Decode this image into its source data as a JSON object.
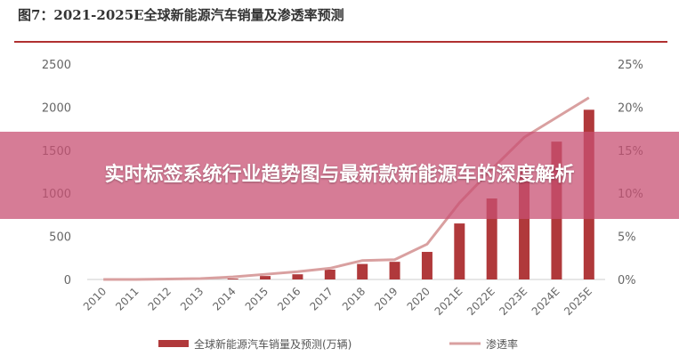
{
  "title": "图7：2021-2025E全球新能源汽车销量及渗透率预测",
  "banner": "实时标签系统行业趋势图与最新款新能源车的深度解析",
  "chart_data": {
    "type": "bar+line",
    "categories": [
      "2010",
      "2011",
      "2012",
      "2013",
      "2014",
      "2015",
      "2016",
      "2017",
      "2018",
      "2019",
      "2020",
      "2021E",
      "2022E",
      "2023E",
      "2024E",
      "2025E"
    ],
    "series": [
      {
        "name": "全球新能源汽车销量及预测(万辆)",
        "type": "bar",
        "axis": "left",
        "color": "#b0393b",
        "values": [
          0,
          1,
          2,
          5,
          10,
          40,
          60,
          114,
          180,
          205,
          320,
          650,
          940,
          1300,
          1600,
          1970
        ]
      },
      {
        "name": "渗透率",
        "type": "line",
        "axis": "right",
        "color": "#d9a0a0",
        "values": [
          0,
          0,
          0.05,
          0.1,
          0.3,
          0.6,
          0.9,
          1.3,
          2.2,
          2.3,
          4.1,
          8.9,
          12.8,
          16.5,
          18.8,
          21.1
        ]
      }
    ],
    "left_axis": {
      "ticks": [
        "0",
        "500",
        "1000",
        "1500",
        "2000",
        "2500"
      ],
      "range": [
        0,
        2500
      ]
    },
    "right_axis": {
      "ticks": [
        "0%",
        "5%",
        "10%",
        "15%",
        "20%",
        "25%"
      ],
      "range": [
        0,
        25
      ]
    },
    "legend_placement": "bottom",
    "grid": false
  }
}
